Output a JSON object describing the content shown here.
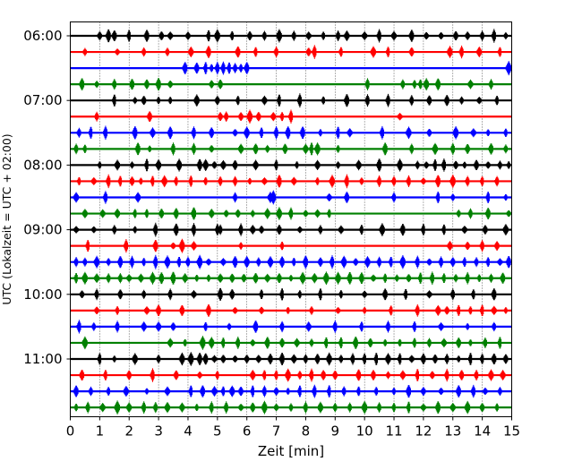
{
  "chart_data": {
    "type": "line",
    "title": "",
    "xlabel": "Zeit  [min]",
    "ylabel": "UTC (Lokalzeit = UTC + 02:00)",
    "xlim": [
      0,
      15
    ],
    "x_ticks": [
      0,
      1,
      2,
      3,
      4,
      5,
      6,
      7,
      8,
      9,
      10,
      11,
      12,
      13,
      14,
      15
    ],
    "x_tick_labels": [
      "0",
      "1",
      "2",
      "3",
      "4",
      "5",
      "6",
      "7",
      "8",
      "9",
      "10",
      "11",
      "12",
      "13",
      "14",
      "15"
    ],
    "vertical_gridlines": "dotted at each minute",
    "trace_interval_min": 15,
    "trace_start": "06:00",
    "trace_count": 24,
    "trace_colors": [
      "#000000",
      "#ff0000",
      "#0000ff",
      "#008000"
    ],
    "y_tick_labels": [
      "06:00",
      "07:00",
      "08:00",
      "09:00",
      "10:00",
      "11:00"
    ],
    "y_tick_trace_index": [
      0,
      4,
      8,
      12,
      16,
      20
    ],
    "traces": [
      {
        "start": "06:00",
        "color": "#000000",
        "events": [
          1.0,
          1.3,
          1.5,
          2.0,
          2.6,
          3.1,
          3.4,
          4.0,
          4.7,
          5.0,
          5.5,
          6.1,
          6.6,
          7.1,
          7.6,
          8.1,
          8.6,
          9.1,
          9.4,
          10.0,
          10.5,
          11.0,
          11.6,
          12.1,
          12.6,
          13.1,
          13.5,
          14.0,
          14.4,
          14.8
        ]
      },
      {
        "start": "06:15",
        "color": "#ff0000",
        "events": [
          0.5,
          1.6,
          2.5,
          3.3,
          4.1,
          4.7,
          5.7,
          6.3,
          7.0,
          8.1,
          8.3,
          9.2,
          10.3,
          10.8,
          11.6,
          12.9,
          13.3,
          13.9,
          14.6
        ]
      },
      {
        "start": "06:30",
        "color": "#0000ff",
        "events": [
          3.9,
          4.3,
          4.6,
          4.8,
          5.0,
          5.2,
          5.4,
          5.6,
          5.8,
          6.0,
          14.9
        ]
      },
      {
        "start": "06:45",
        "color": "#008000",
        "events": [
          0.4,
          0.9,
          1.5,
          2.1,
          2.6,
          3.0,
          3.4,
          4.8,
          5.1,
          10.1,
          11.3,
          11.7,
          11.9,
          12.1,
          12.5,
          13.6,
          14.3
        ]
      },
      {
        "start": "07:00",
        "color": "#000000",
        "events": [
          1.5,
          2.2,
          2.5,
          3.0,
          3.4,
          4.3,
          5.0,
          5.7,
          6.6,
          7.1,
          7.8,
          8.6,
          9.4,
          10.1,
          10.8,
          11.6,
          12.2,
          12.8,
          13.3,
          13.9,
          14.5
        ]
      },
      {
        "start": "07:15",
        "color": "#ff0000",
        "events": [
          0.9,
          2.7,
          5.1,
          5.3,
          5.8,
          6.1,
          6.4,
          6.9,
          7.2,
          7.5,
          11.2
        ]
      },
      {
        "start": "07:30",
        "color": "#0000ff",
        "events": [
          0.3,
          0.7,
          1.2,
          2.2,
          2.8,
          3.4,
          4.2,
          4.8,
          5.6,
          6.0,
          6.5,
          7.0,
          7.4,
          7.9,
          8.5,
          9.1,
          9.5,
          10.6,
          11.5,
          12.2,
          13.1,
          13.7,
          14.2,
          14.8
        ]
      },
      {
        "start": "07:45",
        "color": "#008000",
        "events": [
          0.2,
          0.5,
          2.3,
          2.7,
          3.5,
          4.2,
          4.8,
          5.8,
          6.3,
          6.7,
          7.3,
          8.0,
          8.2,
          8.4,
          9.1,
          10.7,
          11.6,
          12.4,
          13.0,
          13.5,
          14.3,
          14.8
        ]
      },
      {
        "start": "08:00",
        "color": "#000000",
        "events": [
          1.0,
          1.6,
          2.1,
          2.6,
          3.0,
          3.7,
          4.4,
          4.6,
          4.9,
          5.2,
          5.6,
          6.3,
          7.0,
          7.7,
          8.4,
          9.1,
          9.8,
          10.5,
          11.2,
          11.8,
          12.1,
          12.4,
          12.7,
          13.1,
          13.4,
          13.8,
          14.2,
          14.6,
          14.9
        ]
      },
      {
        "start": "08:15",
        "color": "#ff0000",
        "events": [
          0.3,
          0.8,
          1.3,
          1.7,
          2.1,
          2.4,
          2.8,
          3.2,
          3.6,
          4.1,
          4.6,
          5.1,
          5.6,
          6.1,
          6.6,
          7.1,
          7.6,
          8.4,
          8.9,
          9.4,
          9.9,
          10.5,
          11.0,
          11.5,
          12.0,
          12.5,
          13.0,
          13.5,
          14.0,
          14.5
        ]
      },
      {
        "start": "08:30",
        "color": "#0000ff",
        "events": [
          0.2,
          1.2,
          2.3,
          5.6,
          6.8,
          6.9,
          8.8,
          9.4,
          11.0,
          12.5,
          13.0,
          14.2,
          14.8
        ]
      },
      {
        "start": "08:45",
        "color": "#008000",
        "events": [
          0.5,
          1.1,
          1.6,
          2.2,
          2.6,
          3.1,
          3.6,
          4.2,
          4.8,
          5.3,
          5.7,
          6.2,
          6.7,
          7.1,
          7.5,
          8.0,
          8.4,
          8.8,
          13.2,
          13.6,
          14.2,
          14.9
        ]
      },
      {
        "start": "09:00",
        "color": "#000000",
        "events": [
          0.2,
          0.8,
          1.5,
          2.2,
          2.9,
          3.6,
          4.2,
          5.0,
          5.1,
          5.8,
          6.2,
          6.5,
          7.1,
          7.8,
          8.5,
          9.2,
          9.9,
          10.6,
          11.3,
          12.0,
          12.7,
          13.4,
          14.1,
          14.8
        ]
      },
      {
        "start": "09:15",
        "color": "#ff0000",
        "events": [
          0.6,
          1.9,
          2.9,
          3.5,
          3.8,
          4.2,
          5.8,
          7.2,
          12.9,
          13.5,
          14.0,
          14.5
        ]
      },
      {
        "start": "09:30",
        "color": "#0000ff",
        "events": [
          0.2,
          0.5,
          0.9,
          1.3,
          1.7,
          2.1,
          2.5,
          2.9,
          3.3,
          3.7,
          4.0,
          4.4,
          4.7,
          5.2,
          5.6,
          6.0,
          6.4,
          6.8,
          7.2,
          7.6,
          8.0,
          8.5,
          8.9,
          9.3,
          9.7,
          10.1,
          10.5,
          10.9,
          11.3,
          11.8,
          12.2,
          12.6,
          13.0,
          13.4,
          13.8,
          14.2,
          14.6,
          14.9
        ]
      },
      {
        "start": "09:45",
        "color": "#008000",
        "events": [
          0.2,
          0.5,
          0.9,
          1.3,
          1.7,
          2.0,
          2.4,
          2.8,
          3.1,
          3.5,
          3.9,
          4.3,
          4.7,
          5.1,
          5.5,
          5.9,
          6.3,
          6.7,
          7.1,
          7.5,
          7.9,
          8.3,
          8.7,
          9.1,
          9.5,
          9.9,
          10.3,
          10.7,
          11.1,
          11.5,
          11.9,
          12.3,
          12.7,
          13.1,
          13.5,
          13.9,
          14.3,
          14.7
        ]
      },
      {
        "start": "10:00",
        "color": "#000000",
        "events": [
          0.4,
          0.9,
          1.7,
          2.5,
          3.4,
          4.2,
          5.1,
          5.5,
          6.5,
          7.2,
          7.8,
          8.5,
          9.2,
          10.0,
          10.7,
          11.4,
          12.2,
          13.0,
          13.7,
          14.4
        ]
      },
      {
        "start": "10:15",
        "color": "#ff0000",
        "events": [
          0.9,
          1.6,
          2.6,
          3.0,
          3.8,
          4.7,
          5.6,
          6.5,
          7.4,
          8.2,
          9.1,
          10.0,
          10.9,
          11.8,
          12.5,
          12.8,
          13.2,
          13.6,
          14.0,
          14.4,
          14.8
        ]
      },
      {
        "start": "10:30",
        "color": "#0000ff",
        "events": [
          0.3,
          0.8,
          1.6,
          2.5,
          3.0,
          3.5,
          4.6,
          5.4,
          6.3,
          7.2,
          8.1,
          9.0,
          9.9,
          10.8,
          11.7,
          12.6,
          13.5,
          14.4
        ]
      },
      {
        "start": "10:45",
        "color": "#008000",
        "events": [
          0.5,
          3.4,
          3.9,
          4.5,
          4.8,
          5.2,
          5.7,
          6.2,
          6.7,
          7.2,
          7.7,
          8.2,
          8.7,
          9.2,
          9.7,
          10.2,
          10.7,
          11.2,
          11.7,
          12.2,
          12.7,
          13.2,
          13.6,
          14.1,
          14.6
        ]
      },
      {
        "start": "11:00",
        "color": "#000000",
        "events": [
          1.0,
          1.5,
          2.2,
          3.0,
          3.8,
          4.1,
          4.4,
          4.6,
          4.9,
          5.2,
          5.6,
          6.0,
          6.4,
          6.8,
          7.2,
          7.6,
          8.0,
          8.4,
          8.8,
          9.2,
          9.6,
          10.0,
          10.4,
          10.8,
          11.2,
          11.6,
          12.0,
          12.4,
          12.8,
          13.2,
          13.6,
          14.0,
          14.4,
          14.8
        ]
      },
      {
        "start": "11:15",
        "color": "#ff0000",
        "events": [
          0.4,
          1.2,
          2.0,
          2.8,
          3.6,
          4.4,
          5.0,
          6.2,
          6.6,
          7.0,
          7.4,
          7.8,
          8.2,
          8.6,
          9.0,
          9.8,
          10.3,
          10.8,
          11.3,
          11.8,
          12.3,
          12.8,
          13.3,
          13.8,
          14.3,
          14.7
        ]
      },
      {
        "start": "11:30",
        "color": "#0000ff",
        "events": [
          0.2,
          0.7,
          1.3,
          1.9,
          2.6,
          3.3,
          4.1,
          4.5,
          4.9,
          5.2,
          5.5,
          5.8,
          6.2,
          6.6,
          7.0,
          7.4,
          7.8,
          8.3,
          8.8,
          9.3,
          9.8,
          10.4,
          11.0,
          11.5,
          12.0,
          12.6,
          13.2,
          13.7,
          14.1,
          14.6
        ]
      },
      {
        "start": "11:45",
        "color": "#008000",
        "events": [
          0.2,
          0.6,
          1.1,
          1.6,
          2.0,
          2.5,
          2.9,
          3.3,
          3.8,
          4.3,
          4.8,
          5.3,
          5.8,
          6.2,
          6.6,
          7.0,
          7.5,
          8.0,
          8.5,
          9.0,
          9.5,
          10.0,
          10.5,
          11.0,
          11.5,
          12.0,
          12.5,
          13.0,
          13.5,
          14.0,
          14.5
        ]
      }
    ]
  }
}
